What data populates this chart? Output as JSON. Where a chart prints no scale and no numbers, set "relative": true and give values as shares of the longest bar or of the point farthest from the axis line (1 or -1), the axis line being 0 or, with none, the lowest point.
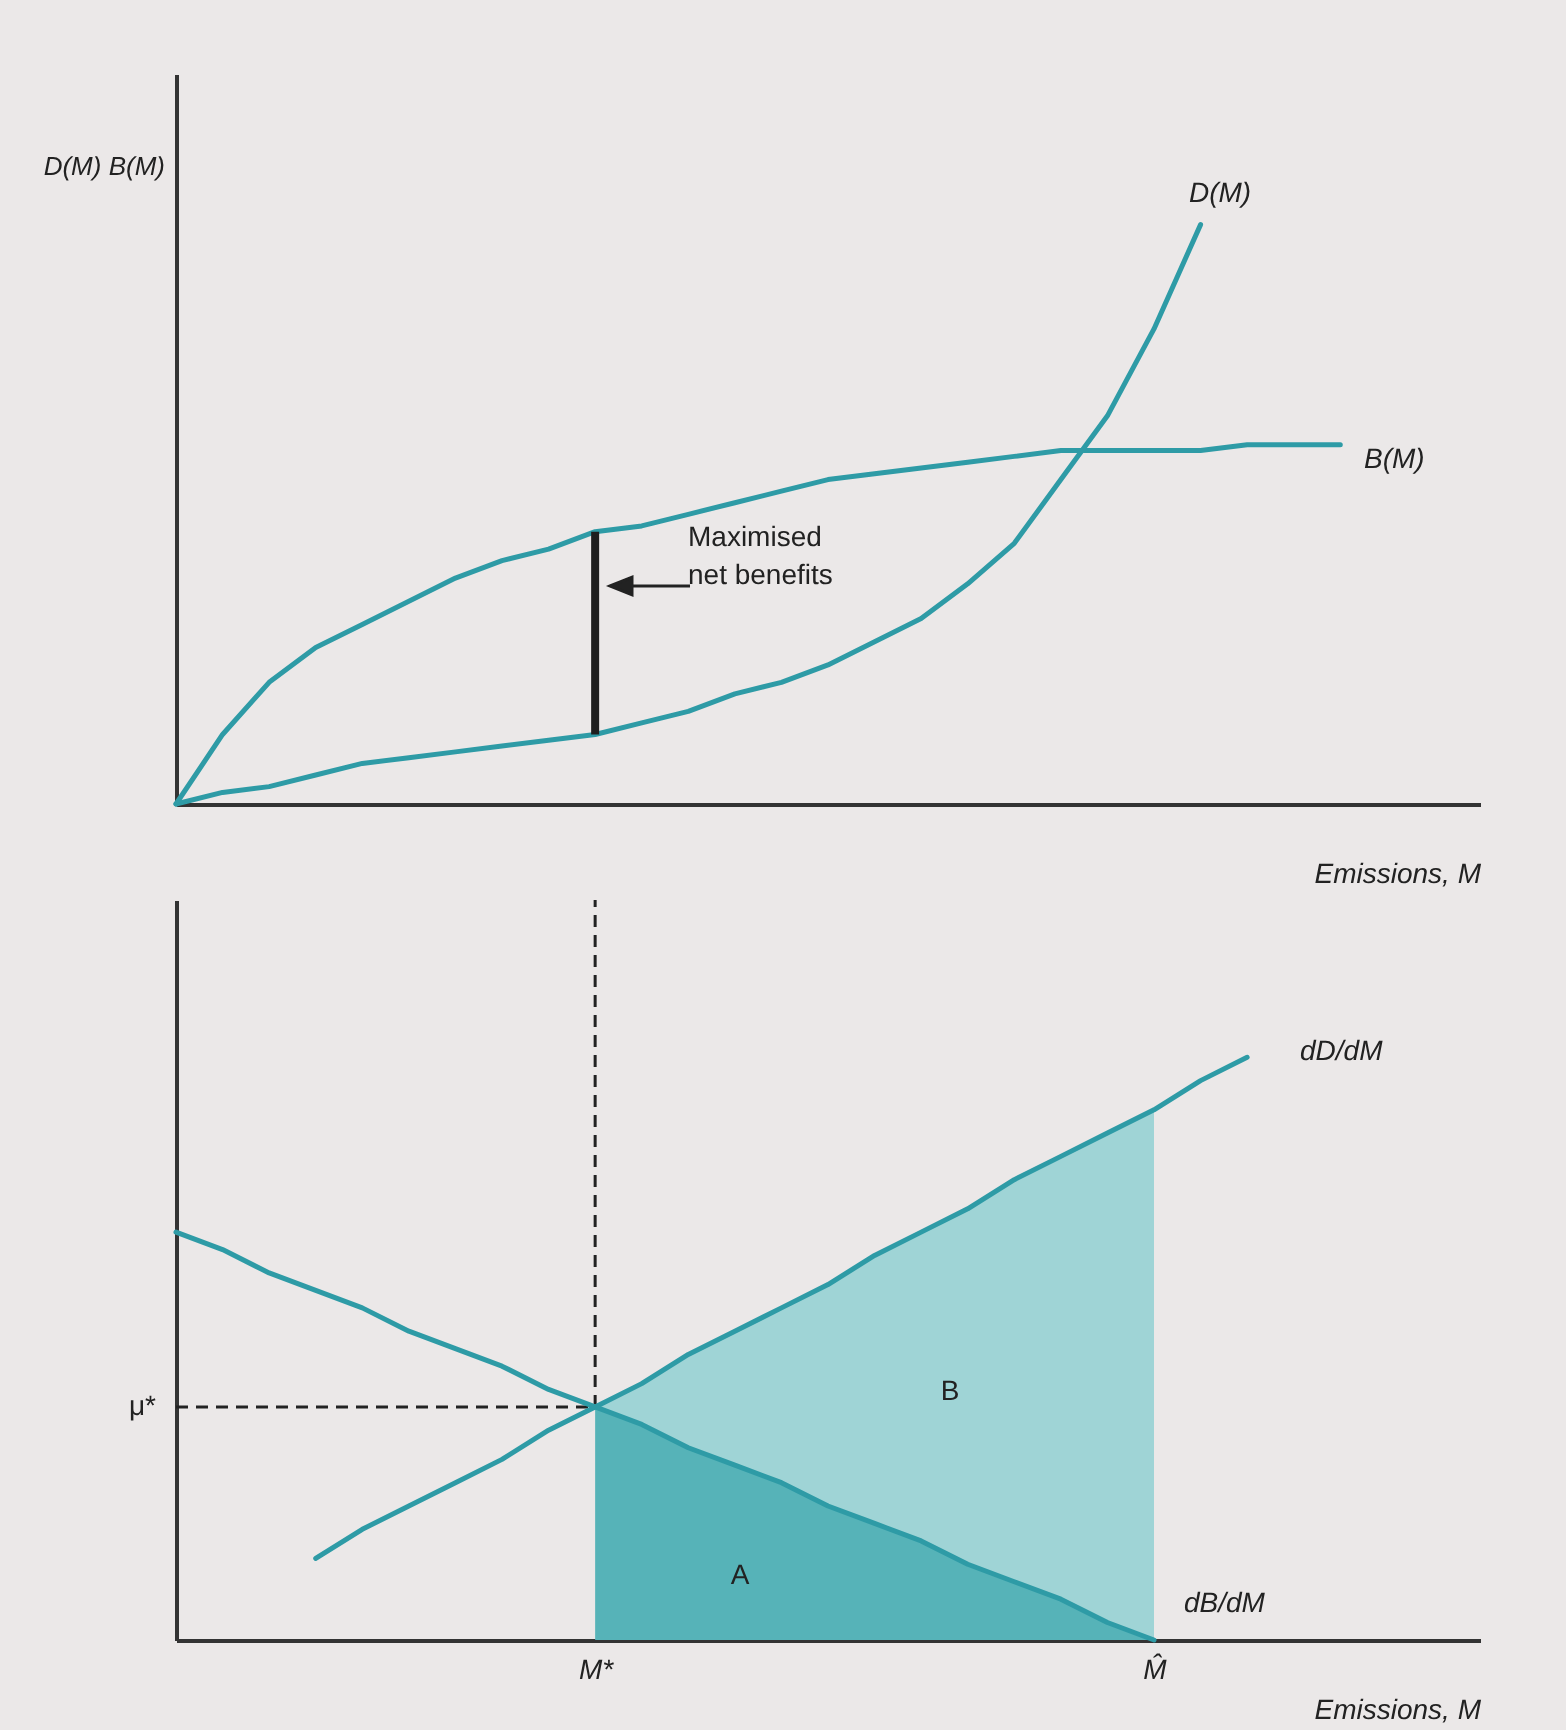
{
  "chart_data": [
    {
      "type": "line",
      "relative": true,
      "xlabel": "Emissions, M",
      "ylabel": "D(M) B(M)",
      "categories": [
        null,
        null,
        null,
        null,
        null,
        null,
        null,
        null,
        null,
        null,
        null,
        null,
        null,
        null,
        null,
        null,
        null,
        null,
        null,
        null,
        null,
        null,
        null,
        null,
        null,
        null,
        null,
        null,
        null
      ],
      "series": [
        {
          "name": "D(M)",
          "color": "#2e9ba6",
          "values": [
            0,
            0.02,
            0.03,
            0.05,
            0.07,
            0.08,
            0.09,
            0.1,
            0.11,
            0.12,
            0.14,
            0.16,
            0.19,
            0.21,
            0.24,
            0.28,
            0.32,
            0.38,
            0.45,
            0.56,
            0.67,
            0.82,
            1.0,
            null,
            null,
            null,
            null,
            null,
            null
          ]
        },
        {
          "name": "B(M)",
          "color": "#2e9ba6",
          "values": [
            0,
            0.12,
            0.21,
            0.27,
            0.31,
            0.35,
            0.39,
            0.42,
            0.44,
            0.47,
            0.48,
            0.5,
            0.52,
            0.54,
            0.56,
            0.57,
            0.58,
            0.59,
            0.6,
            0.61,
            0.61,
            0.61,
            0.61,
            0.62,
            0.62,
            0.62,
            null,
            null,
            null
          ]
        }
      ],
      "annotations": [
        "Maximised net benefits"
      ]
    },
    {
      "type": "line",
      "relative": true,
      "xlabel": "Emissions, M",
      "categories": [
        null,
        null,
        null,
        null,
        null,
        null,
        null,
        null,
        null,
        "M*",
        null,
        null,
        null,
        null,
        null,
        null,
        null,
        null,
        null,
        null,
        null,
        "M̂",
        null,
        null,
        null,
        null,
        null,
        null,
        null
      ],
      "series": [
        {
          "name": "dD/dM",
          "color": "#2e9ba6",
          "values": [
            null,
            null,
            null,
            0.14,
            0.19,
            0.23,
            0.27,
            0.31,
            0.36,
            0.4,
            0.44,
            0.49,
            0.53,
            0.57,
            0.61,
            0.66,
            0.7,
            0.74,
            0.79,
            0.83,
            0.87,
            0.91,
            0.96,
            1.0,
            null,
            null,
            null,
            null,
            null
          ]
        },
        {
          "name": "dB/dM",
          "color": "#2e9ba6",
          "values": [
            0.7,
            0.67,
            0.63,
            0.6,
            0.57,
            0.53,
            0.5,
            0.47,
            0.43,
            0.4,
            0.37,
            0.33,
            0.3,
            0.27,
            0.23,
            0.2,
            0.17,
            0.13,
            0.1,
            0.07,
            0.03,
            0,
            null,
            null,
            null,
            null,
            null,
            null,
            null
          ]
        }
      ],
      "ref_lines": [
        {
          "axis": "y",
          "value": 0.4,
          "label": "μ*",
          "line_style": "dashed",
          "color": "#222222"
        },
        {
          "axis": "x",
          "value": "M*",
          "line_style": "dashed",
          "color": "#222222"
        }
      ],
      "annotations": [
        "A",
        "B"
      ]
    }
  ]
}
